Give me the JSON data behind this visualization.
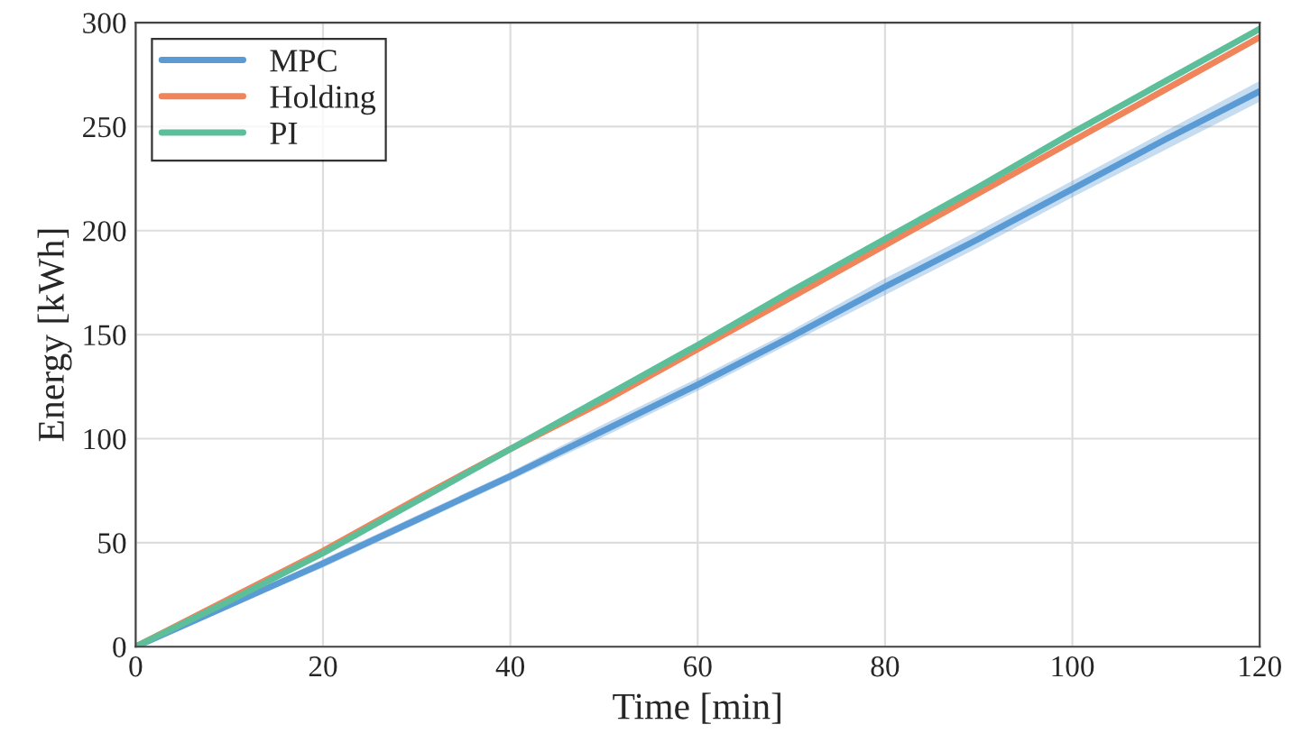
{
  "chart_data": {
    "type": "line",
    "xlabel": "Time [min]",
    "ylabel": "Energy [kWh]",
    "x": [
      0,
      10,
      20,
      30,
      40,
      50,
      60,
      70,
      80,
      90,
      100,
      110,
      120
    ],
    "series": [
      {
        "name": "MPC",
        "color": "#5b9bd5",
        "values": [
          0,
          20,
          40,
          61,
          82,
          104,
          126,
          149,
          173,
          196,
          220,
          244,
          267
        ],
        "lower": [
          0,
          19,
          38,
          59,
          80,
          101,
          123,
          146,
          169,
          192,
          216,
          239,
          262
        ],
        "upper": [
          0,
          21,
          42,
          63,
          84,
          107,
          129,
          152,
          177,
          200,
          224,
          248,
          272
        ]
      },
      {
        "name": "Holding",
        "color": "#f0845a",
        "values": [
          0,
          23,
          46,
          71,
          95,
          118,
          143,
          168,
          193,
          218,
          243,
          268,
          293
        ]
      },
      {
        "name": "PI",
        "color": "#5dbf9a",
        "values": [
          0,
          22,
          45,
          70,
          95,
          120,
          145,
          171,
          196,
          221,
          247,
          272,
          297
        ]
      }
    ],
    "xlim": [
      0,
      120
    ],
    "xticks": [
      0,
      20,
      40,
      60,
      80,
      100,
      120
    ],
    "ylim": [
      0,
      300
    ],
    "yticks": [
      0,
      50,
      100,
      150,
      200,
      250,
      300
    ],
    "grid": true,
    "legend": "top left",
    "line_style": "solid"
  }
}
